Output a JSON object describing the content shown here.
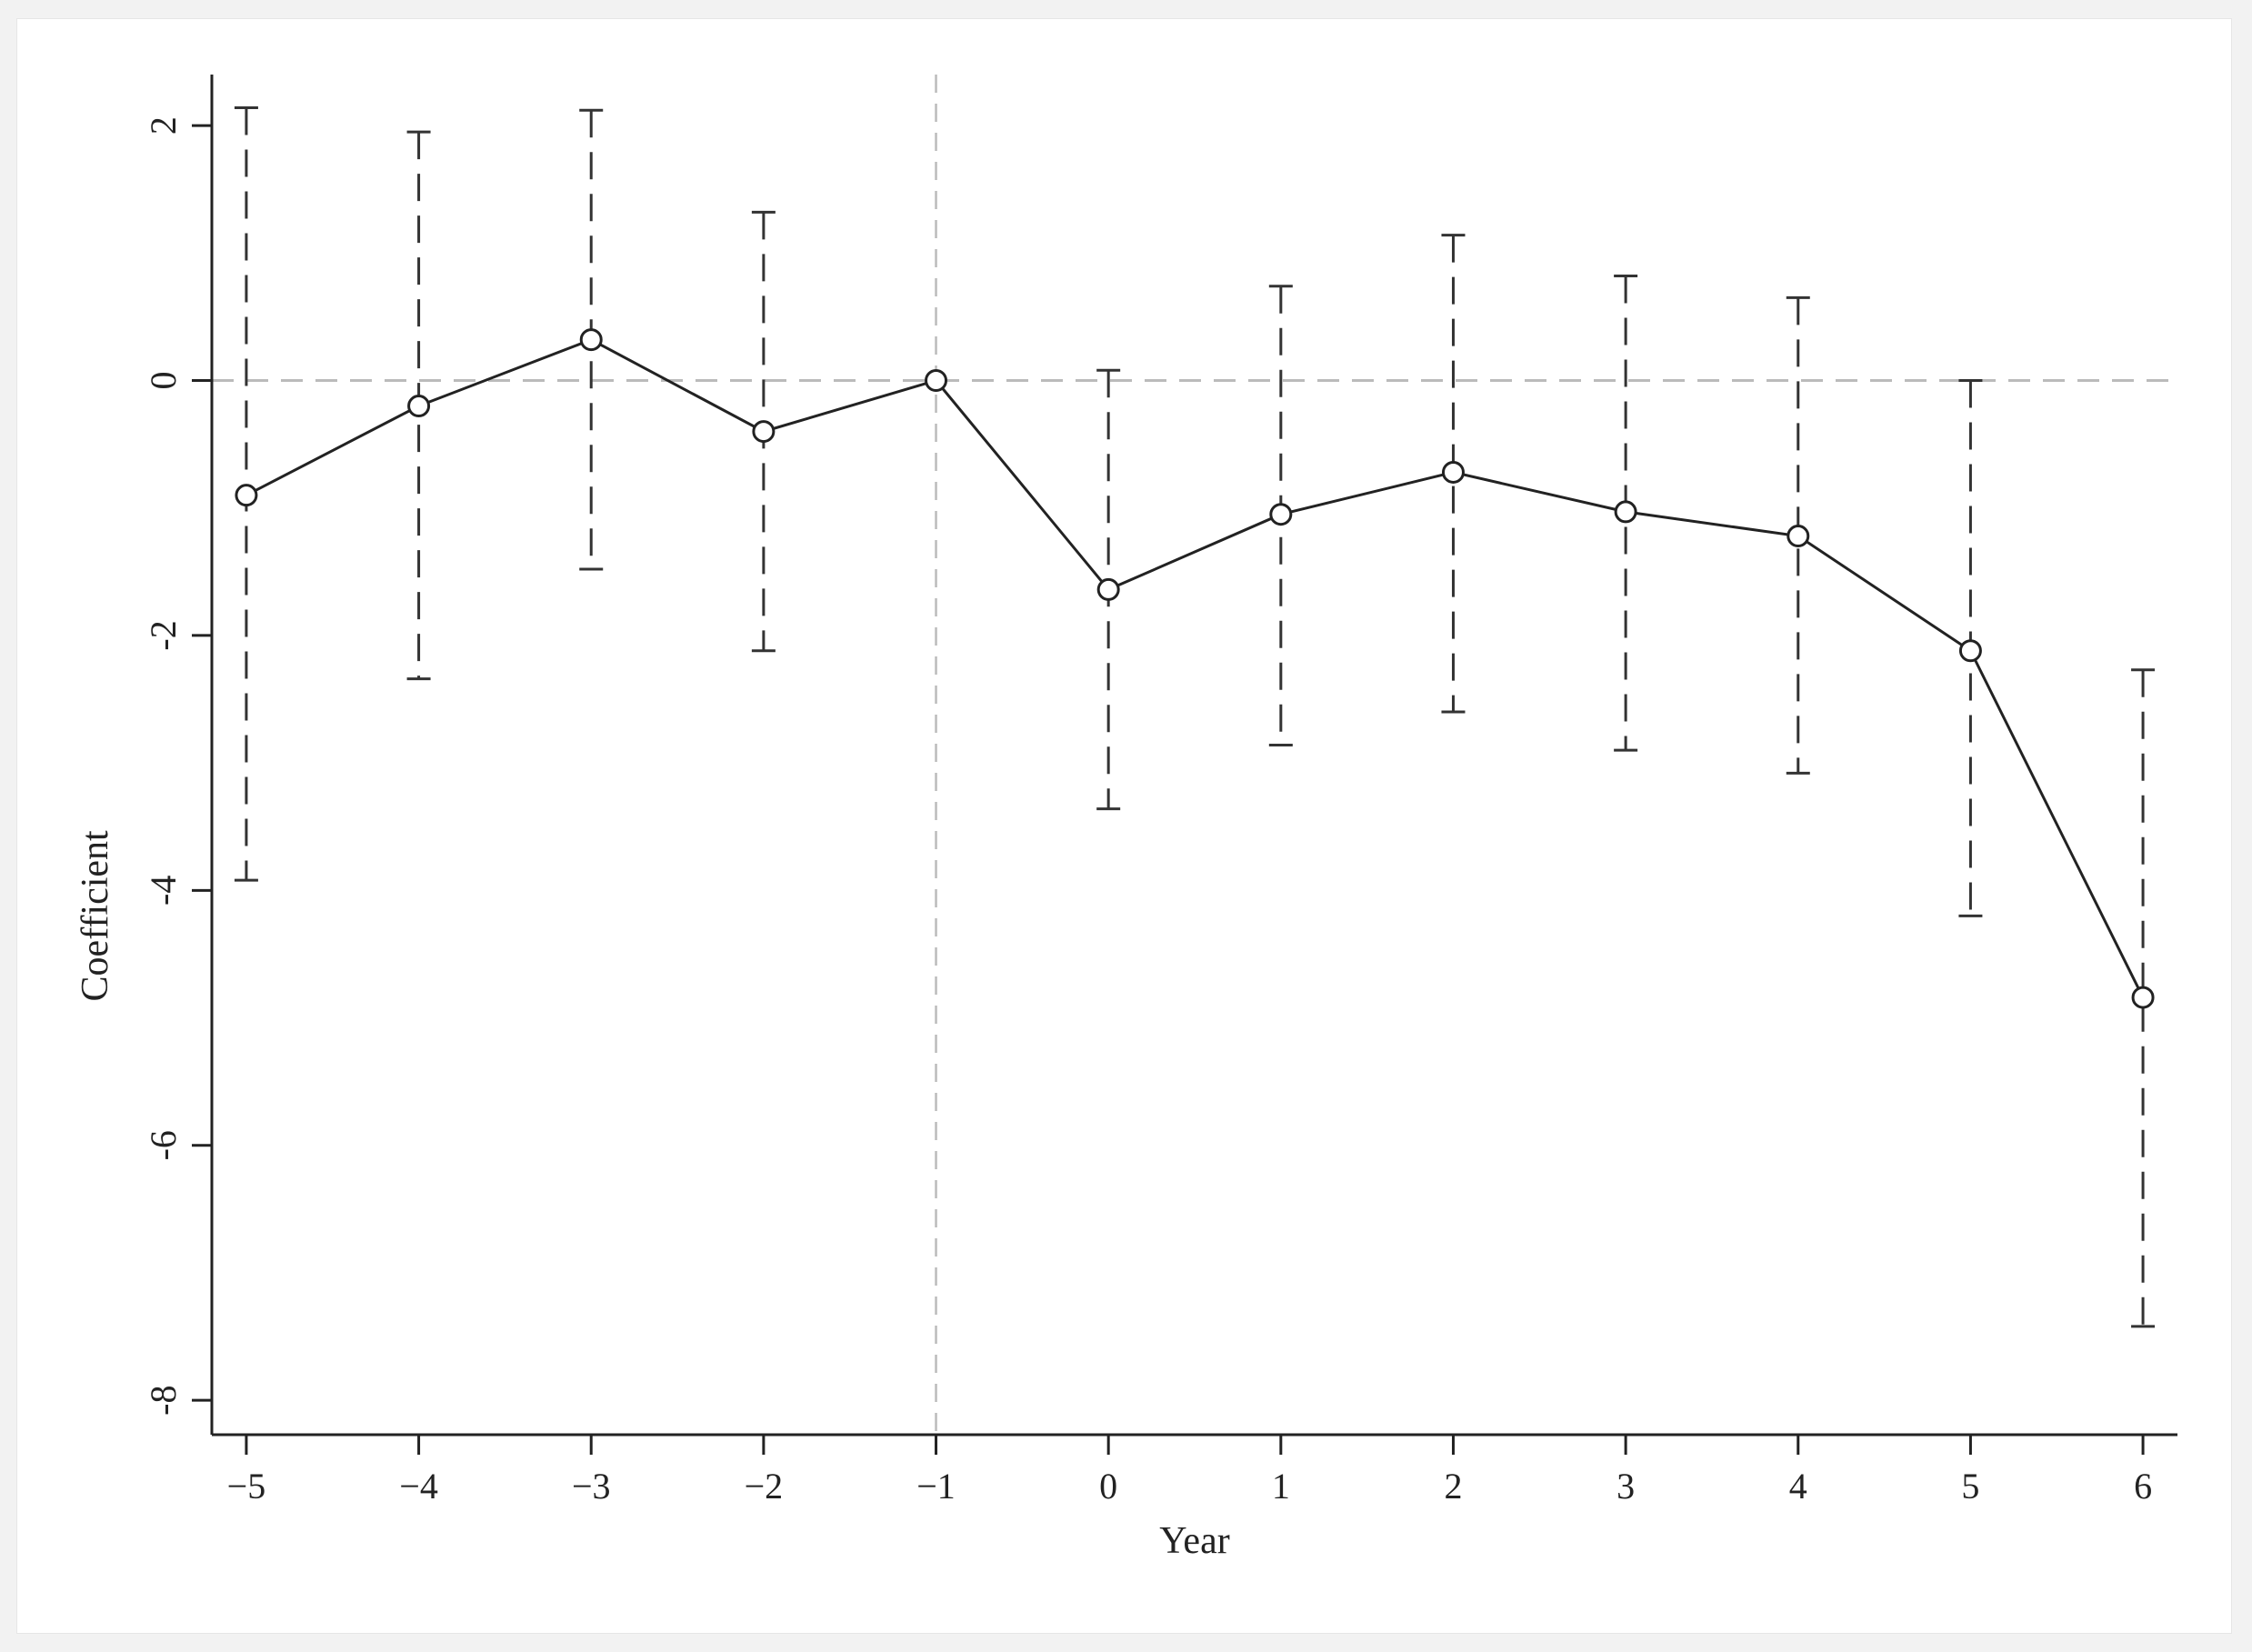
{
  "chart_data": {
    "type": "line",
    "title": "",
    "xlabel": "Year",
    "ylabel": "Coefficient",
    "x": [
      -5,
      -4,
      -3,
      -2,
      -1,
      0,
      1,
      2,
      3,
      4,
      5,
      6
    ],
    "x_tick_labels": [
      "−5",
      "−4",
      "−3",
      "−2",
      "−1",
      "0",
      "1",
      "2",
      "3",
      "4",
      "5",
      "6"
    ],
    "y_ticks": [
      2,
      0,
      -2,
      -4,
      -6,
      -8
    ],
    "y_tick_labels": [
      "2",
      "0",
      "-2",
      "-4",
      "-6",
      "-8"
    ],
    "xlim": [
      -5.2,
      6.2
    ],
    "ylim": [
      -8.27,
      2.4
    ],
    "series": [
      {
        "values": [
          -0.9,
          -0.2,
          0.32,
          -0.4,
          0.0,
          -1.64,
          -1.05,
          -0.72,
          -1.03,
          -1.22,
          -2.12,
          -4.84
        ],
        "ci_upper": [
          2.14,
          1.95,
          2.12,
          1.32,
          0.0,
          0.08,
          0.74,
          1.14,
          0.82,
          0.65,
          0.0,
          -2.27
        ],
        "ci_lower": [
          -3.92,
          -2.34,
          -1.48,
          -2.12,
          0.0,
          -3.36,
          -2.86,
          -2.6,
          -2.9,
          -3.08,
          -4.2,
          -7.42
        ],
        "color": "#222222",
        "marker": "hollow-circle"
      }
    ],
    "reference_lines": {
      "horizontal_y": 0,
      "vertical_x": -1,
      "style": "dashed",
      "color": "#bbbbbb"
    },
    "ci_style": "dashed",
    "grid": false,
    "legend": "none"
  }
}
